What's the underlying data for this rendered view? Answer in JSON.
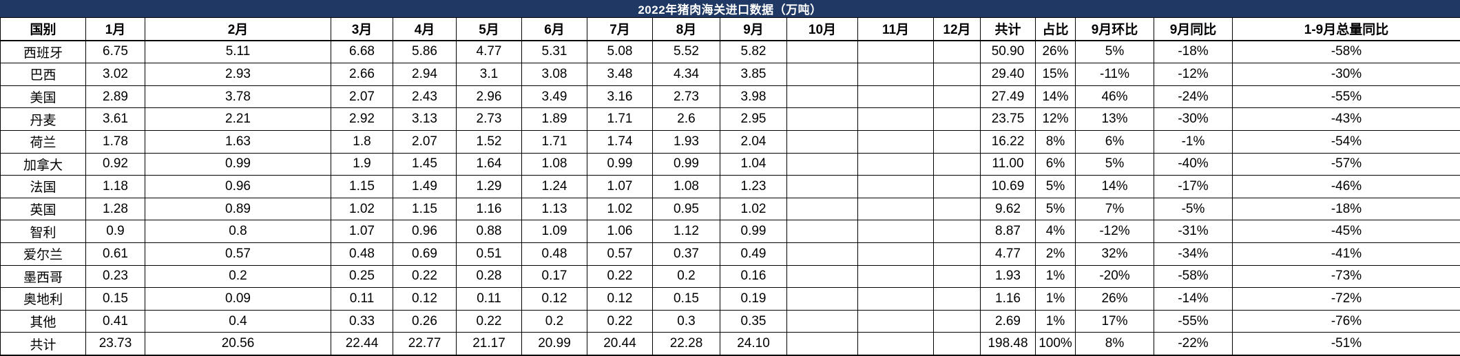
{
  "title": "2022年猪肉海关进口数据（万吨）",
  "colors": {
    "title_bar_bg": "#1f3864",
    "title_text": "#ffffff",
    "cell_bg": "#ffffff",
    "cell_text": "#000000",
    "border": "#000000"
  },
  "chart_data": {
    "type": "table",
    "title": "2022年猪肉海关进口数据（万吨）",
    "columns": [
      "国别",
      "1月",
      "2月",
      "3月",
      "4月",
      "5月",
      "6月",
      "7月",
      "8月",
      "9月",
      "10月",
      "11月",
      "12月",
      "共计",
      "占比",
      "9月环比",
      "9月同比",
      "1-9月总量同比"
    ],
    "rows": [
      [
        "西班牙",
        "6.75",
        "5.11",
        "6.68",
        "5.86",
        "4.77",
        "5.31",
        "5.08",
        "5.52",
        "5.82",
        "",
        "",
        "",
        "50.90",
        "26%",
        "5%",
        "-18%",
        "-58%"
      ],
      [
        "巴西",
        "3.02",
        "2.93",
        "2.66",
        "2.94",
        "3.1",
        "3.08",
        "3.48",
        "4.34",
        "3.85",
        "",
        "",
        "",
        "29.40",
        "15%",
        "-11%",
        "-12%",
        "-30%"
      ],
      [
        "美国",
        "2.89",
        "3.78",
        "2.07",
        "2.43",
        "2.96",
        "3.49",
        "3.16",
        "2.73",
        "3.98",
        "",
        "",
        "",
        "27.49",
        "14%",
        "46%",
        "-24%",
        "-55%"
      ],
      [
        "丹麦",
        "3.61",
        "2.21",
        "2.92",
        "3.13",
        "2.73",
        "1.89",
        "1.71",
        "2.6",
        "2.95",
        "",
        "",
        "",
        "23.75",
        "12%",
        "13%",
        "-30%",
        "-43%"
      ],
      [
        "荷兰",
        "1.78",
        "1.63",
        "1.8",
        "2.07",
        "1.52",
        "1.71",
        "1.74",
        "1.93",
        "2.04",
        "",
        "",
        "",
        "16.22",
        "8%",
        "6%",
        "-1%",
        "-54%"
      ],
      [
        "加拿大",
        "0.92",
        "0.99",
        "1.9",
        "1.45",
        "1.64",
        "1.08",
        "0.99",
        "0.99",
        "1.04",
        "",
        "",
        "",
        "11.00",
        "6%",
        "5%",
        "-40%",
        "-57%"
      ],
      [
        "法国",
        "1.18",
        "0.96",
        "1.15",
        "1.49",
        "1.29",
        "1.24",
        "1.07",
        "1.08",
        "1.23",
        "",
        "",
        "",
        "10.69",
        "5%",
        "14%",
        "-17%",
        "-46%"
      ],
      [
        "英国",
        "1.28",
        "0.89",
        "1.02",
        "1.15",
        "1.16",
        "1.13",
        "1.02",
        "0.95",
        "1.02",
        "",
        "",
        "",
        "9.62",
        "5%",
        "7%",
        "-5%",
        "-18%"
      ],
      [
        "智利",
        "0.9",
        "0.8",
        "1.07",
        "0.96",
        "0.88",
        "1.09",
        "1.06",
        "1.12",
        "0.99",
        "",
        "",
        "",
        "8.87",
        "4%",
        "-12%",
        "-31%",
        "-45%"
      ],
      [
        "爱尔兰",
        "0.61",
        "0.57",
        "0.48",
        "0.69",
        "0.51",
        "0.48",
        "0.57",
        "0.37",
        "0.49",
        "",
        "",
        "",
        "4.77",
        "2%",
        "32%",
        "-34%",
        "-41%"
      ],
      [
        "墨西哥",
        "0.23",
        "0.2",
        "0.25",
        "0.22",
        "0.28",
        "0.17",
        "0.22",
        "0.2",
        "0.16",
        "",
        "",
        "",
        "1.93",
        "1%",
        "-20%",
        "-58%",
        "-73%"
      ],
      [
        "奥地利",
        "0.15",
        "0.09",
        "0.11",
        "0.12",
        "0.11",
        "0.12",
        "0.12",
        "0.15",
        "0.19",
        "",
        "",
        "",
        "1.16",
        "1%",
        "26%",
        "-14%",
        "-72%"
      ],
      [
        "其他",
        "0.41",
        "0.4",
        "0.33",
        "0.26",
        "0.22",
        "0.2",
        "0.22",
        "0.3",
        "0.35",
        "",
        "",
        "",
        "2.69",
        "1%",
        "17%",
        "-55%",
        "-76%"
      ],
      [
        "共计",
        "23.73",
        "20.56",
        "22.44",
        "22.77",
        "21.17",
        "20.99",
        "20.44",
        "22.28",
        "24.10",
        "",
        "",
        "",
        "198.48",
        "100%",
        "8%",
        "-22%",
        "-51%"
      ]
    ]
  }
}
